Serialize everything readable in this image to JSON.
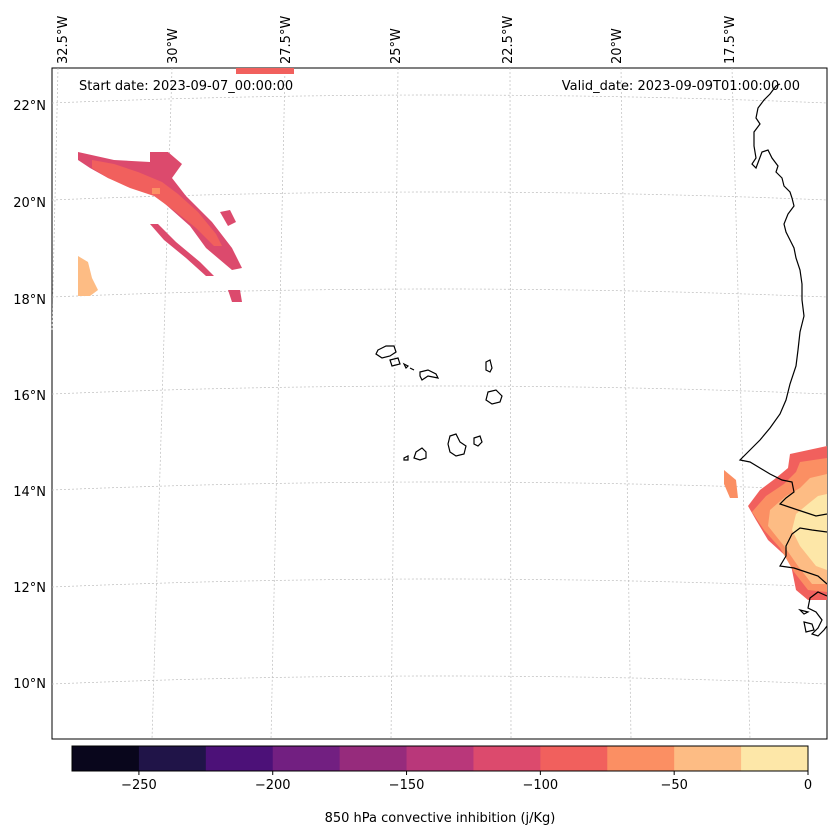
{
  "map": {
    "start_date": "Start date: 2023-09-07_00:00:00",
    "valid_date": "Valid_date: 2023-09-09T01:00:00.00",
    "lon_labels": [
      "32.5°W",
      "30°W",
      "27.5°W",
      "25°W",
      "22.5°W",
      "20°W",
      "17.5°W"
    ],
    "lat_labels": [
      "22°N",
      "20°N",
      "18°N",
      "16°N",
      "14°N",
      "12°N",
      "10°N"
    ],
    "variable_label": "850 hPa convective inhibition (j/Kg)",
    "colors": {
      "coastline": "#000000",
      "gridline": "#bdbdbd"
    }
  },
  "colorbar": {
    "tick_labels": [
      "−250",
      "−200",
      "−150",
      "−100",
      "−50",
      "0"
    ],
    "levels": [
      -275,
      -250,
      -225,
      -200,
      -175,
      -150,
      -125,
      -100,
      -75,
      -50,
      -25,
      0
    ],
    "colors": [
      "#09061c",
      "#201448",
      "#4c1178",
      "#721f81",
      "#962b7c",
      "#b9377a",
      "#dc4a6d",
      "#f1605d",
      "#fb8f63",
      "#fdbc84",
      "#fde7a8"
    ]
  }
}
